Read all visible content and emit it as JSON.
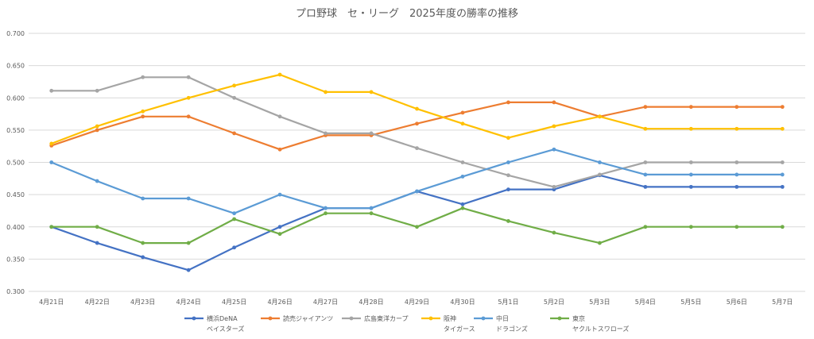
{
  "chart_data": {
    "type": "line",
    "title": "プロ野球　セ・リーグ　2025年度の勝率の推移",
    "x_categories": [
      "4月21日",
      "4月22日",
      "4月23日",
      "4月24日",
      "4月25日",
      "4月26日",
      "4月27日",
      "4月28日",
      "4月29日",
      "4月30日",
      "5月1日",
      "5月2日",
      "5月3日",
      "5月4日",
      "5月5日",
      "5月6日",
      "5月7日"
    ],
    "ylim": [
      0.3,
      0.7
    ],
    "yticks": [
      "0.300",
      "0.350",
      "0.400",
      "0.450",
      "0.500",
      "0.550",
      "0.600",
      "0.650",
      "0.700"
    ],
    "grid": true,
    "legend_position": "bottom",
    "series": [
      {
        "name": "横浜DeNA",
        "sub": "ベイスターズ",
        "color": "#4472c4",
        "values": [
          0.4,
          0.375,
          0.353,
          0.333,
          0.368,
          0.4,
          0.429,
          0.429,
          0.455,
          0.435,
          0.458,
          0.458,
          0.48,
          0.462,
          0.462,
          0.462,
          0.462
        ]
      },
      {
        "name": "読売ジャイアンツ",
        "sub": "",
        "color": "#ed7d31",
        "values": [
          0.526,
          0.55,
          0.571,
          0.571,
          0.545,
          0.52,
          0.542,
          0.542,
          0.56,
          0.577,
          0.593,
          0.593,
          0.571,
          0.586,
          0.586,
          0.586,
          0.586
        ]
      },
      {
        "name": "広島東洋カープ",
        "sub": "",
        "color": "#a5a5a5",
        "values": [
          0.611,
          0.611,
          0.632,
          0.632,
          0.6,
          0.571,
          0.545,
          0.545,
          0.522,
          0.5,
          0.48,
          0.462,
          0.481,
          0.5,
          0.5,
          0.5,
          0.5
        ]
      },
      {
        "name": "阪神",
        "sub": "タイガース",
        "color": "#ffc000",
        "values": [
          0.529,
          0.556,
          0.579,
          0.6,
          0.619,
          0.636,
          0.609,
          0.609,
          0.583,
          0.56,
          0.538,
          0.556,
          0.571,
          0.552,
          0.552,
          0.552,
          0.552
        ]
      },
      {
        "name": "中日",
        "sub": "ドラゴンズ",
        "color": "#5b9bd5",
        "values": [
          0.5,
          0.471,
          0.444,
          0.444,
          0.421,
          0.45,
          0.429,
          0.429,
          0.455,
          0.478,
          0.5,
          0.52,
          0.5,
          0.481,
          0.481,
          0.481,
          0.481
        ]
      },
      {
        "name": "東京",
        "sub": "ヤクルトスワローズ",
        "color": "#70ad47",
        "values": [
          0.4,
          0.4,
          0.375,
          0.375,
          0.412,
          0.389,
          0.421,
          0.421,
          0.4,
          0.429,
          0.409,
          0.391,
          0.375,
          0.4,
          0.4,
          0.4,
          0.4
        ]
      }
    ]
  }
}
